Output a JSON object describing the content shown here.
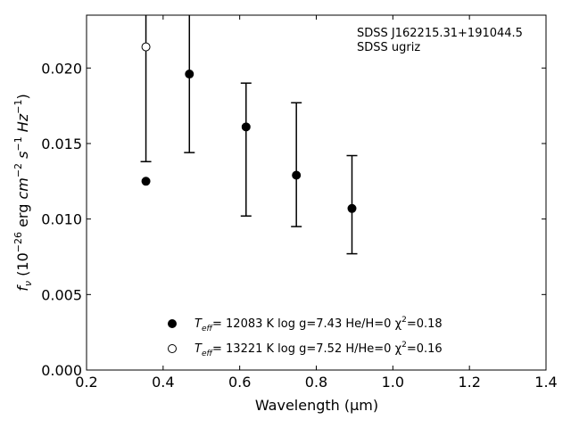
{
  "chart_data": {
    "type": "scatter",
    "title": "",
    "xlabel": "Wavelength (μm)",
    "ylabel": "f_ν (10^-26 erg cm^-2 s^-1 Hz^-1)",
    "xlim": [
      0.2,
      1.4
    ],
    "ylim": [
      0.0,
      0.0235
    ],
    "xticks": [
      0.2,
      0.4,
      0.6,
      0.8,
      1.0,
      1.2,
      1.4
    ],
    "xtick_labels": [
      "0.2",
      "0.4",
      "0.6",
      "0.8",
      "1.0",
      "1.2",
      "1.4"
    ],
    "yticks": [
      0.0,
      0.005,
      0.01,
      0.015,
      0.02
    ],
    "ytick_labels": [
      "0.000",
      "0.005",
      "0.010",
      "0.015",
      "0.020"
    ],
    "grid": false,
    "legend_position": "bottom-center",
    "annotation_lines": [
      "SDSS J162215.31+191044.5",
      "SDSS ugriz"
    ],
    "observed": {
      "x": [
        0.3551,
        0.4686,
        0.6166,
        0.748,
        0.8932
      ],
      "y": [
        null,
        0.0236,
        0.0154,
        0.0136,
        0.0109
      ],
      "yerr_low": [
        0.0138,
        0.0144,
        0.0102,
        0.0095,
        0.0077
      ],
      "yerr_high": [
        0.0236,
        0.0236,
        0.019,
        0.0177,
        0.0142
      ]
    },
    "series": [
      {
        "marker": "filled-circle",
        "color": "#000000",
        "x": [
          0.3551,
          0.4686,
          0.6166,
          0.748,
          0.8932
        ],
        "y": [
          0.0125,
          0.0196,
          0.0161,
          0.0129,
          0.0107
        ]
      },
      {
        "marker": "open-circle",
        "color": "#000000",
        "x": [
          0.3551
        ],
        "y": [
          0.0214
        ]
      }
    ],
    "legend": [
      {
        "marker": "filled-circle",
        "t_symbol": "T",
        "t_sub": "eff",
        "text": "= 12083 K  log g=7.43  He/H=0  χ",
        "sup": "2",
        "tail": "=0.18"
      },
      {
        "marker": "open-circle",
        "t_symbol": "T",
        "t_sub": "eff",
        "text": "= 13221 K  log g=7.52  H/He=0  χ",
        "sup": "2",
        "tail": "=0.16"
      }
    ]
  }
}
